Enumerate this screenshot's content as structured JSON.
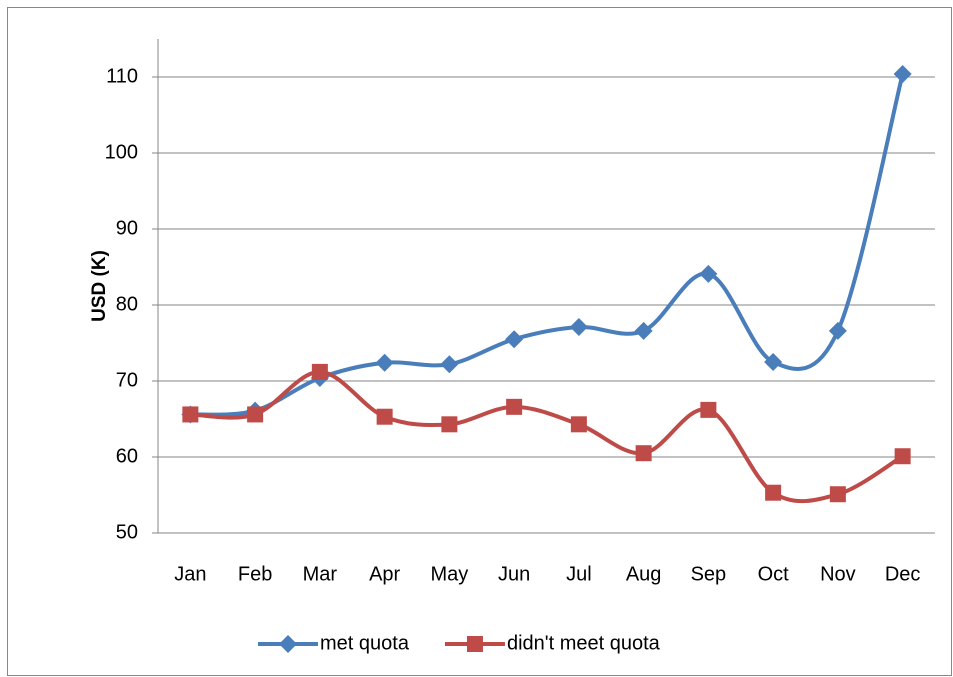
{
  "chart_data": {
    "type": "line",
    "ylabel": "USD (K)",
    "categories": [
      "Jan",
      "Feb",
      "Mar",
      "Apr",
      "May",
      "Jun",
      "Jul",
      "Aug",
      "Sep",
      "Oct",
      "Nov",
      "Dec"
    ],
    "series": [
      {
        "name": "met quota",
        "color": "#4a7ebb",
        "marker": "diamond",
        "values": [
          65.6,
          66.1,
          70.4,
          72.4,
          72.2,
          75.5,
          77.1,
          76.6,
          84.1,
          72.5,
          76.6,
          110.4
        ]
      },
      {
        "name": "didn't meet quota",
        "color": "#be4b48",
        "marker": "square",
        "values": [
          65.6,
          65.6,
          71.2,
          65.3,
          64.3,
          66.6,
          64.3,
          60.5,
          66.2,
          55.3,
          55.1,
          60.1
        ]
      }
    ],
    "ylim": [
      50,
      115
    ],
    "yticks": [
      50,
      60,
      70,
      80,
      90,
      100,
      110
    ],
    "grid": true,
    "smooth": true,
    "legend": "bottom"
  }
}
